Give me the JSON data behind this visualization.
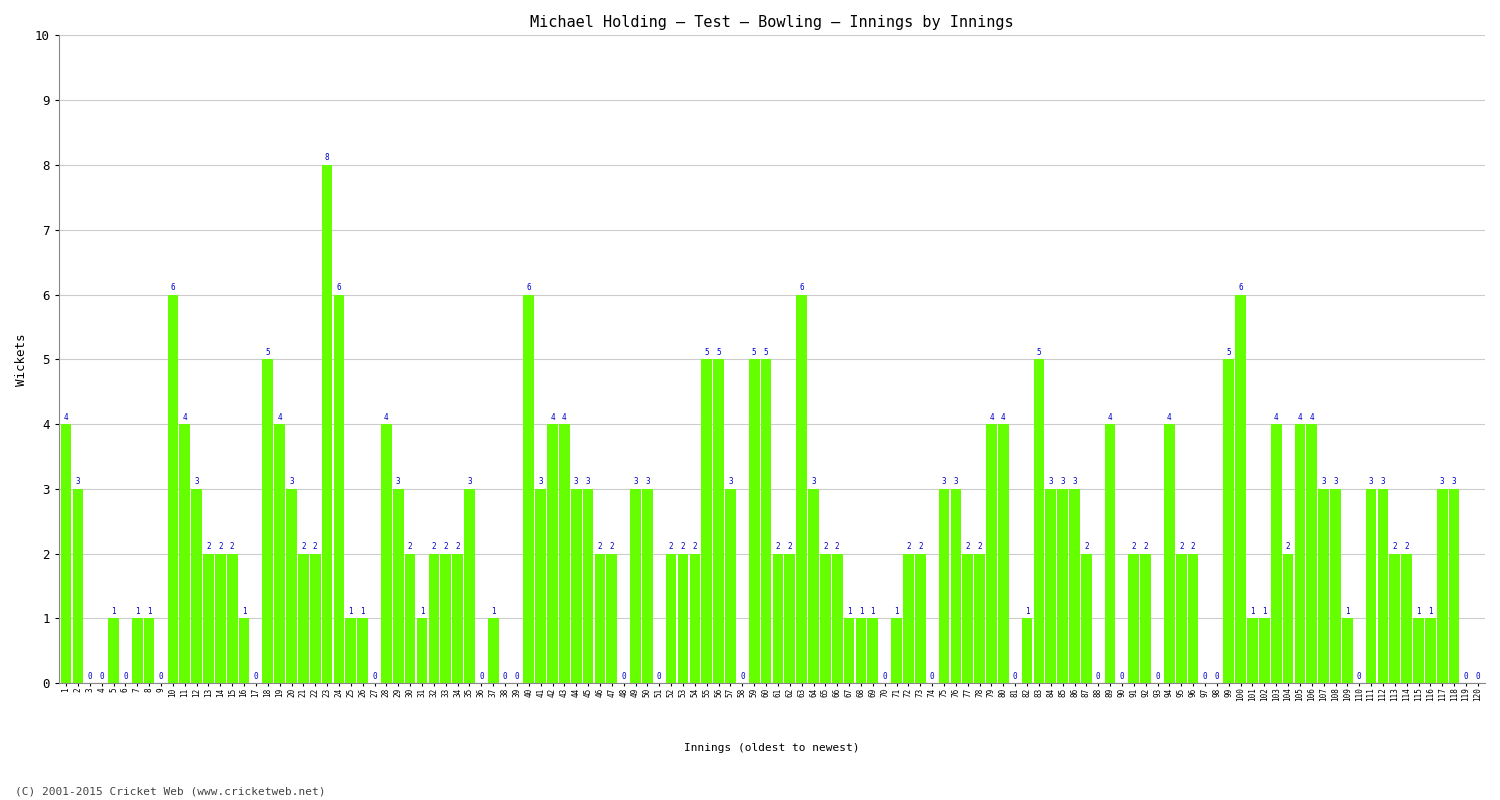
{
  "title": "Michael Holding – Test – Bowling – Innings by Innings",
  "xlabel": "Innings (oldest to newest)",
  "ylabel": "Wickets",
  "ylim": [
    0,
    10
  ],
  "yticks": [
    0,
    1,
    2,
    3,
    4,
    5,
    6,
    7,
    8,
    9,
    10
  ],
  "bar_color": "#66FF00",
  "bar_edge_color": "#55DD00",
  "label_color": "#0000CC",
  "background_color": "#FFFFFF",
  "grid_color": "#CCCCCC",
  "copyright": "(C) 2001-2015 Cricket Web (www.cricketweb.net)",
  "wickets": [
    4,
    3,
    0,
    0,
    1,
    0,
    1,
    1,
    0,
    6,
    4,
    3,
    2,
    2,
    2,
    1,
    0,
    5,
    4,
    3,
    2,
    2,
    8,
    6,
    1,
    1,
    0,
    4,
    3,
    2,
    1,
    2,
    2,
    2,
    3,
    0,
    1,
    0,
    0,
    6,
    3,
    4,
    4,
    3,
    3,
    2,
    2,
    0,
    3,
    3,
    0,
    2,
    2,
    2,
    5,
    5,
    3,
    0,
    5,
    5,
    2,
    2,
    6,
    3,
    2,
    2,
    1,
    1,
    1,
    0,
    1,
    2,
    2,
    0,
    3,
    3,
    2,
    2,
    4,
    4,
    0,
    1,
    5,
    3,
    3,
    3,
    2,
    0,
    4,
    0,
    2,
    2,
    0,
    4,
    2,
    2,
    0,
    0,
    5,
    6,
    1,
    1,
    4,
    2,
    4,
    4,
    3,
    3,
    1,
    0,
    3,
    3,
    2,
    2,
    1,
    1,
    3,
    3,
    0,
    0
  ],
  "x_labels_row1": [
    "1",
    "2",
    "3",
    "4",
    "5",
    "6",
    "7",
    "8",
    "9",
    "10",
    "11",
    "12",
    "13",
    "14",
    "15",
    "16",
    "17",
    "18",
    "19",
    "20",
    "21",
    "22",
    "23",
    "24",
    "25",
    "26",
    "27",
    "28",
    "29",
    "30",
    "31",
    "32",
    "33",
    "34",
    "35",
    "36",
    "37",
    "38",
    "39",
    "40",
    "41",
    "42",
    "43",
    "44",
    "45",
    "46",
    "47",
    "48",
    "49",
    "50",
    "51",
    "52",
    "53",
    "54",
    "55",
    "56",
    "57",
    "58",
    "59",
    "60",
    "61",
    "62",
    "63",
    "64",
    "65",
    "66",
    "67",
    "68",
    "69",
    "70",
    "71",
    "72",
    "73",
    "74",
    "75",
    "76",
    "77",
    "78",
    "79",
    "80",
    "81",
    "82",
    "83",
    "84",
    "85",
    "86",
    "87",
    "88",
    "89",
    "90",
    "91",
    "92",
    "93",
    "94",
    "95",
    "96",
    "97",
    "98",
    "99",
    "100",
    "101",
    "102",
    "103",
    "104",
    "105",
    "106",
    "107",
    "108",
    "109",
    "110",
    "111",
    "112",
    "113",
    "114",
    "115",
    "116",
    "117",
    "118",
    "119",
    "120"
  ]
}
